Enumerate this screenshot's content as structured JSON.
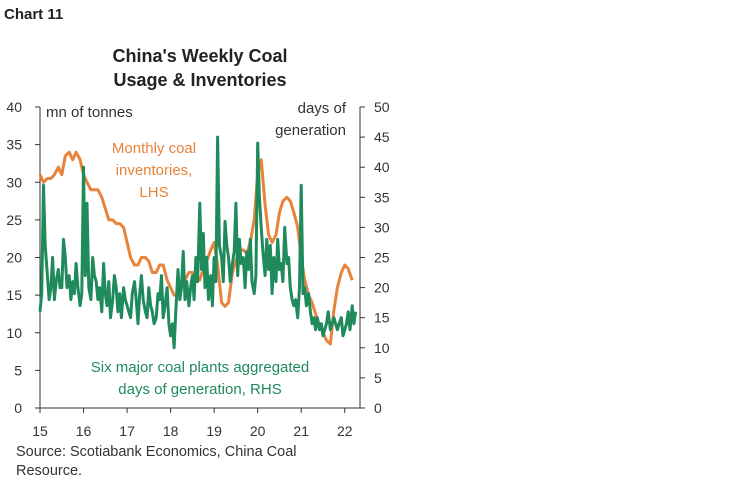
{
  "header": {
    "chart_number": "Chart 11"
  },
  "footer": {
    "source": "Source: Scotiabank Economics, China Coal Resource."
  },
  "colors": {
    "inventories": "#e8843a",
    "days": "#1f8a5b",
    "axis": "#333333"
  },
  "chart_data": {
    "type": "line",
    "title": "China's Weekly Coal Usage & Inventories",
    "title_lines": [
      "China's Weekly Coal",
      "Usage & Inventories"
    ],
    "left_axis": {
      "label": "mn of tonnes",
      "range": [
        0,
        40
      ],
      "ticks": [
        "0",
        "5",
        "10",
        "15",
        "20",
        "25",
        "30",
        "35",
        "40"
      ]
    },
    "right_axis": {
      "label_lines": [
        "days of",
        "generation"
      ],
      "range": [
        0,
        50
      ],
      "ticks": [
        "0",
        "5",
        "10",
        "15",
        "20",
        "25",
        "30",
        "35",
        "40",
        "45",
        "50"
      ]
    },
    "x_axis": {
      "range": [
        2015,
        2022.35
      ],
      "ticks": [
        "15",
        "16",
        "17",
        "18",
        "19",
        "20",
        "21",
        "22"
      ],
      "tick_values": [
        2015,
        2016,
        2017,
        2018,
        2019,
        2020,
        2021,
        2022
      ]
    },
    "grid": false,
    "series": [
      {
        "name": "Monthly coal inventories, LHS",
        "label_lines": [
          "Monthly coal",
          "inventories,",
          "LHS"
        ],
        "axis": "left",
        "x": [
          2015.0,
          2015.08,
          2015.17,
          2015.25,
          2015.33,
          2015.42,
          2015.5,
          2015.58,
          2015.67,
          2015.75,
          2015.83,
          2015.92,
          2016.0,
          2016.08,
          2016.17,
          2016.25,
          2016.33,
          2016.42,
          2016.5,
          2016.58,
          2016.67,
          2016.75,
          2016.83,
          2016.92,
          2017.0,
          2017.08,
          2017.17,
          2017.25,
          2017.33,
          2017.42,
          2017.5,
          2017.58,
          2017.67,
          2017.75,
          2017.83,
          2017.92,
          2018.0,
          2018.08,
          2018.17,
          2018.25,
          2018.33,
          2018.42,
          2018.5,
          2018.58,
          2018.67,
          2018.75,
          2018.83,
          2018.92,
          2019.0,
          2019.08,
          2019.17,
          2019.25,
          2019.33,
          2019.42,
          2019.5,
          2019.58,
          2019.67,
          2019.75,
          2019.83,
          2019.92,
          2020.0,
          2020.08,
          2020.17,
          2020.25,
          2020.33,
          2020.42,
          2020.5,
          2020.58,
          2020.67,
          2020.75,
          2020.83,
          2020.92,
          2021.0,
          2021.08,
          2021.17,
          2021.25,
          2021.33,
          2021.42,
          2021.5,
          2021.58,
          2021.67,
          2021.75,
          2021.83,
          2021.92,
          2022.0,
          2022.08,
          2022.17
        ],
        "values": [
          31,
          30,
          30.5,
          30.5,
          31,
          32,
          31,
          33.5,
          34,
          33,
          34,
          33,
          31,
          30,
          29,
          29,
          29,
          28,
          26.5,
          25,
          25,
          24.5,
          24.5,
          24,
          22,
          20,
          19,
          19,
          20,
          20,
          19.5,
          18,
          18,
          19,
          19,
          17,
          16,
          15,
          15,
          16,
          17,
          18,
          18,
          17.5,
          17,
          18.5,
          19.5,
          21,
          22,
          19,
          14,
          13.5,
          14,
          18,
          19.5,
          21,
          21,
          20.5,
          22,
          25,
          31,
          33,
          27,
          23,
          22,
          23,
          26,
          27.5,
          28,
          27.5,
          26,
          24,
          20,
          17,
          15,
          14,
          12.5,
          11,
          10,
          9,
          8.5,
          13,
          16,
          18,
          19,
          18.5,
          17
        ]
      },
      {
        "name": "Six major coal plants aggregated days of generation, RHS",
        "label_lines": [
          "Six major coal plants aggregated",
          "days of generation, RHS"
        ],
        "axis": "right",
        "x": [
          2015.0,
          2015.04,
          2015.08,
          2015.12,
          2015.17,
          2015.21,
          2015.25,
          2015.29,
          2015.33,
          2015.37,
          2015.42,
          2015.46,
          2015.5,
          2015.54,
          2015.58,
          2015.62,
          2015.67,
          2015.71,
          2015.75,
          2015.79,
          2015.83,
          2015.87,
          2015.92,
          2015.96,
          2016.0,
          2016.04,
          2016.08,
          2016.12,
          2016.17,
          2016.21,
          2016.25,
          2016.29,
          2016.33,
          2016.37,
          2016.42,
          2016.46,
          2016.5,
          2016.54,
          2016.58,
          2016.62,
          2016.67,
          2016.71,
          2016.75,
          2016.79,
          2016.83,
          2016.87,
          2016.92,
          2016.96,
          2017.0,
          2017.04,
          2017.08,
          2017.12,
          2017.17,
          2017.21,
          2017.25,
          2017.29,
          2017.33,
          2017.37,
          2017.42,
          2017.46,
          2017.5,
          2017.54,
          2017.58,
          2017.62,
          2017.67,
          2017.71,
          2017.75,
          2017.79,
          2017.83,
          2017.87,
          2017.92,
          2017.96,
          2018.0,
          2018.04,
          2018.08,
          2018.12,
          2018.17,
          2018.21,
          2018.25,
          2018.29,
          2018.33,
          2018.37,
          2018.42,
          2018.46,
          2018.5,
          2018.54,
          2018.58,
          2018.62,
          2018.67,
          2018.71,
          2018.75,
          2018.79,
          2018.83,
          2018.87,
          2018.92,
          2018.96,
          2019.0,
          2019.04,
          2019.08,
          2019.12,
          2019.17,
          2019.21,
          2019.25,
          2019.29,
          2019.33,
          2019.37,
          2019.42,
          2019.46,
          2019.5,
          2019.54,
          2019.58,
          2019.62,
          2019.67,
          2019.71,
          2019.75,
          2019.79,
          2019.83,
          2019.87,
          2019.92,
          2019.96,
          2020.0,
          2020.04,
          2020.08,
          2020.12,
          2020.17,
          2020.21,
          2020.25,
          2020.29,
          2020.33,
          2020.37,
          2020.42,
          2020.46,
          2020.5,
          2020.54,
          2020.58,
          2020.62,
          2020.67,
          2020.71,
          2020.75,
          2020.79,
          2020.83,
          2020.87,
          2020.92,
          2020.96,
          2021.0,
          2021.04,
          2021.08,
          2021.12,
          2021.17,
          2021.21,
          2021.25,
          2021.29,
          2021.33,
          2021.37,
          2021.42,
          2021.46,
          2021.5,
          2021.54,
          2021.58,
          2021.62,
          2021.67,
          2021.71,
          2021.75,
          2021.79,
          2021.83,
          2021.87,
          2021.92,
          2021.96,
          2022.0,
          2022.04,
          2022.08,
          2022.12,
          2022.17,
          2022.21,
          2022.25
        ],
        "values": [
          16,
          19,
          37,
          27,
          22,
          18,
          20,
          25,
          18,
          21,
          23,
          20,
          20,
          28,
          25,
          20,
          22,
          18,
          21,
          19,
          24,
          20,
          17,
          19,
          40,
          22,
          34,
          20,
          18,
          25,
          22,
          21,
          18,
          20,
          16,
          24,
          19,
          17,
          21,
          15,
          18,
          22,
          20,
          16,
          19,
          15,
          20,
          18,
          17,
          16,
          15,
          19,
          21,
          18,
          14,
          19,
          22,
          18,
          16,
          15,
          20,
          17,
          16,
          14,
          15,
          19,
          18,
          22,
          15,
          17,
          20,
          14,
          12,
          14,
          10,
          16,
          23,
          18,
          20,
          26,
          18,
          21,
          17,
          20,
          22,
          18,
          25,
          21,
          34,
          23,
          29,
          20,
          25,
          18,
          22,
          17,
          25,
          21,
          45,
          27,
          25,
          21,
          31,
          27,
          25,
          21,
          24,
          26,
          34,
          22,
          28,
          24,
          25,
          20,
          26,
          23,
          28,
          21,
          19,
          22,
          44,
          35,
          30,
          26,
          22,
          28,
          23,
          27,
          19,
          25,
          21,
          28,
          23,
          24,
          21,
          30,
          24,
          25,
          20,
          18,
          17,
          18,
          15,
          20,
          37,
          19,
          20,
          17,
          19,
          16,
          14,
          15,
          13,
          15,
          13,
          14,
          12,
          13,
          14,
          16,
          13,
          14,
          15,
          14,
          13,
          14,
          15,
          12,
          13,
          14,
          16,
          13,
          17,
          14,
          16
        ]
      }
    ]
  }
}
